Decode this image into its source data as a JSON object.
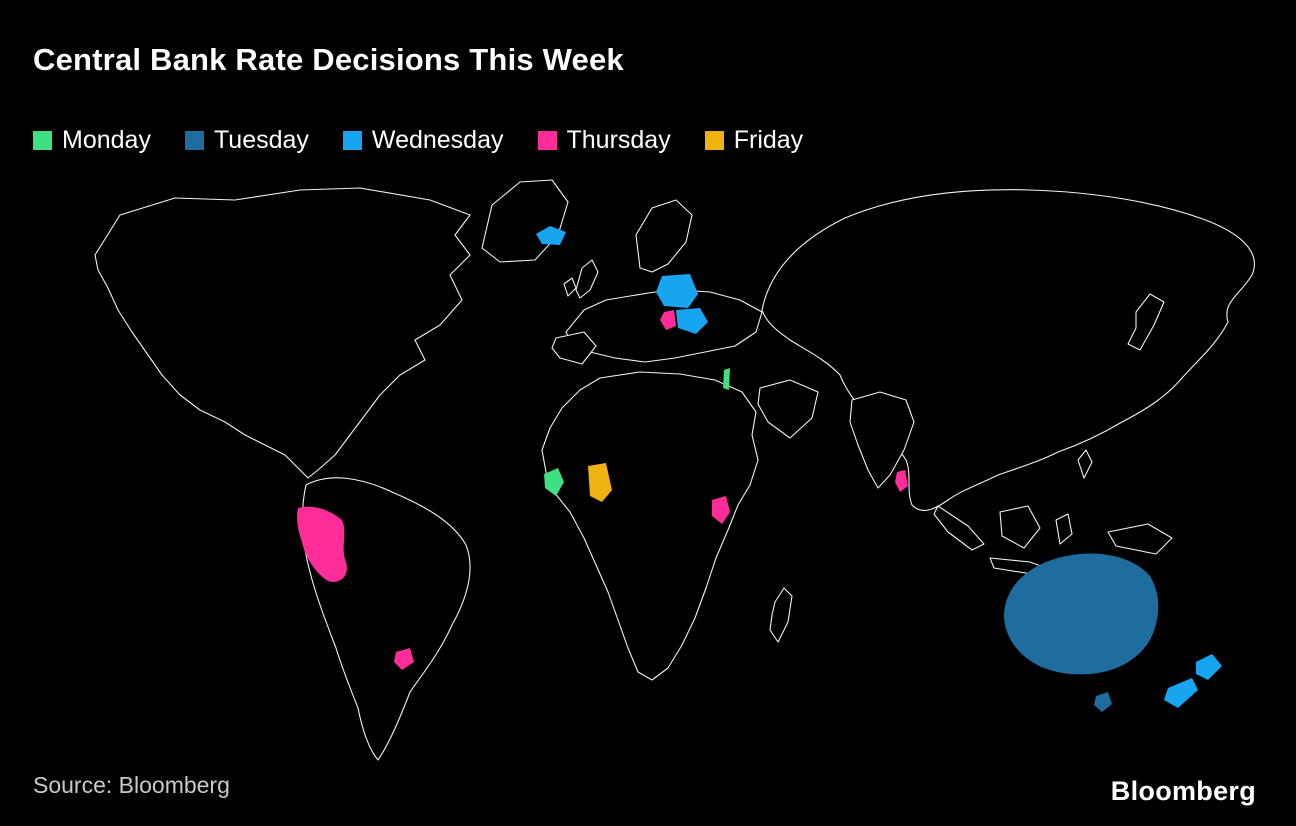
{
  "header": {
    "title": "Central Bank Rate Decisions This Week"
  },
  "footer": {
    "source": "Source:  Bloomberg",
    "brand": "Bloomberg"
  },
  "colors": {
    "background": "#000000",
    "map_outline": "#f2f2f2"
  },
  "chart_data": {
    "type": "choropleth-map",
    "title": "Central Bank Rate Decisions This Week",
    "legend_position": "top-left",
    "legend": [
      {
        "label": "Monday",
        "color": "#3fe07f"
      },
      {
        "label": "Tuesday",
        "color": "#1e6d9e"
      },
      {
        "label": "Wednesday",
        "color": "#18a5f0"
      },
      {
        "label": "Thursday",
        "color": "#ff2d9a"
      },
      {
        "label": "Friday",
        "color": "#eeb211"
      }
    ],
    "highlights": [
      {
        "country": "Israel",
        "day": "Monday"
      },
      {
        "country": "Liberia",
        "day": "Monday"
      },
      {
        "country": "Australia",
        "day": "Tuesday"
      },
      {
        "country": "Tasmania",
        "day": "Tuesday"
      },
      {
        "country": "Iceland",
        "day": "Wednesday"
      },
      {
        "country": "Poland",
        "day": "Wednesday"
      },
      {
        "country": "Romania",
        "day": "Wednesday"
      },
      {
        "country": "New Zealand",
        "day": "Wednesday"
      },
      {
        "country": "Serbia",
        "day": "Thursday"
      },
      {
        "country": "Peru",
        "day": "Thursday"
      },
      {
        "country": "Uruguay",
        "day": "Thursday"
      },
      {
        "country": "Uganda",
        "day": "Thursday"
      },
      {
        "country": "Sri Lanka",
        "day": "Thursday"
      },
      {
        "country": "Ghana",
        "day": "Friday"
      }
    ],
    "source": "Bloomberg"
  }
}
